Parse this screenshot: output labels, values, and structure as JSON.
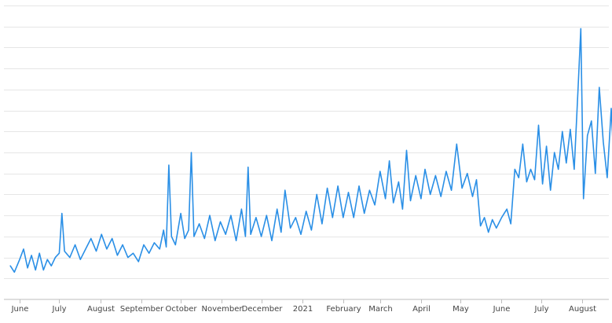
{
  "chart_data": {
    "type": "line",
    "title": "",
    "xlabel": "",
    "ylabel": "",
    "grid": true,
    "legend": "none",
    "color": "#2a8fe6",
    "ylim": [
      0,
      14
    ],
    "y_ticks": [
      0,
      1,
      2,
      3,
      4,
      5,
      6,
      7,
      8,
      9,
      10,
      11,
      12,
      13,
      14
    ],
    "y_tick_labels_shown": false,
    "x_tick_labels": [
      {
        "date": "2020-06-01",
        "label": "June"
      },
      {
        "date": "2020-07-01",
        "label": "July"
      },
      {
        "date": "2020-08-01",
        "label": "August"
      },
      {
        "date": "2020-09-01",
        "label": "September"
      },
      {
        "date": "2020-10-01",
        "label": "October"
      },
      {
        "date": "2020-11-01",
        "label": "November"
      },
      {
        "date": "2020-12-01",
        "label": "December"
      },
      {
        "date": "2021-01-01",
        "label": "2021"
      },
      {
        "date": "2021-02-01",
        "label": "February"
      },
      {
        "date": "2021-03-01",
        "label": "March"
      },
      {
        "date": "2021-04-01",
        "label": "April"
      },
      {
        "date": "2021-05-01",
        "label": "May"
      },
      {
        "date": "2021-06-01",
        "label": "June"
      },
      {
        "date": "2021-07-01",
        "label": "July"
      },
      {
        "date": "2021-08-01",
        "label": "August"
      }
    ],
    "series": [
      {
        "points": [
          [
            "2020-05-25",
            1.6
          ],
          [
            "2020-05-28",
            1.3
          ],
          [
            "2020-06-01",
            1.9
          ],
          [
            "2020-06-04",
            2.4
          ],
          [
            "2020-06-07",
            1.5
          ],
          [
            "2020-06-10",
            2.1
          ],
          [
            "2020-06-13",
            1.4
          ],
          [
            "2020-06-16",
            2.2
          ],
          [
            "2020-06-19",
            1.4
          ],
          [
            "2020-06-22",
            1.9
          ],
          [
            "2020-06-25",
            1.6
          ],
          [
            "2020-06-28",
            2.0
          ],
          [
            "2020-07-01",
            2.2
          ],
          [
            "2020-07-03",
            4.1
          ],
          [
            "2020-07-05",
            2.3
          ],
          [
            "2020-07-09",
            2.0
          ],
          [
            "2020-07-13",
            2.6
          ],
          [
            "2020-07-17",
            1.9
          ],
          [
            "2020-07-21",
            2.4
          ],
          [
            "2020-07-25",
            2.9
          ],
          [
            "2020-07-29",
            2.3
          ],
          [
            "2020-08-02",
            3.1
          ],
          [
            "2020-08-06",
            2.4
          ],
          [
            "2020-08-10",
            2.9
          ],
          [
            "2020-08-14",
            2.1
          ],
          [
            "2020-08-18",
            2.6
          ],
          [
            "2020-08-22",
            2.0
          ],
          [
            "2020-08-26",
            2.2
          ],
          [
            "2020-08-30",
            1.8
          ],
          [
            "2020-09-03",
            2.6
          ],
          [
            "2020-09-07",
            2.2
          ],
          [
            "2020-09-11",
            2.7
          ],
          [
            "2020-09-15",
            2.4
          ],
          [
            "2020-09-18",
            3.3
          ],
          [
            "2020-09-20",
            2.5
          ],
          [
            "2020-09-22",
            6.4
          ],
          [
            "2020-09-24",
            3.0
          ],
          [
            "2020-09-27",
            2.6
          ],
          [
            "2020-10-01",
            4.1
          ],
          [
            "2020-10-04",
            2.9
          ],
          [
            "2020-10-07",
            3.3
          ],
          [
            "2020-10-09",
            7.0
          ],
          [
            "2020-10-11",
            3.0
          ],
          [
            "2020-10-15",
            3.6
          ],
          [
            "2020-10-19",
            2.9
          ],
          [
            "2020-10-23",
            4.0
          ],
          [
            "2020-10-27",
            2.8
          ],
          [
            "2020-10-31",
            3.7
          ],
          [
            "2020-11-04",
            3.1
          ],
          [
            "2020-11-08",
            4.0
          ],
          [
            "2020-11-12",
            2.8
          ],
          [
            "2020-11-16",
            4.3
          ],
          [
            "2020-11-19",
            3.0
          ],
          [
            "2020-11-21",
            6.3
          ],
          [
            "2020-11-23",
            3.1
          ],
          [
            "2020-11-27",
            3.9
          ],
          [
            "2020-12-01",
            3.0
          ],
          [
            "2020-12-05",
            4.0
          ],
          [
            "2020-12-09",
            2.8
          ],
          [
            "2020-12-13",
            4.3
          ],
          [
            "2020-12-16",
            3.2
          ],
          [
            "2020-12-19",
            5.2
          ],
          [
            "2020-12-23",
            3.4
          ],
          [
            "2020-12-27",
            3.9
          ],
          [
            "2020-12-31",
            3.1
          ],
          [
            "2021-01-04",
            4.2
          ],
          [
            "2021-01-08",
            3.3
          ],
          [
            "2021-01-12",
            5.0
          ],
          [
            "2021-01-16",
            3.6
          ],
          [
            "2021-01-20",
            5.3
          ],
          [
            "2021-01-24",
            3.9
          ],
          [
            "2021-01-28",
            5.4
          ],
          [
            "2021-02-01",
            3.9
          ],
          [
            "2021-02-05",
            5.1
          ],
          [
            "2021-02-09",
            3.9
          ],
          [
            "2021-02-13",
            5.4
          ],
          [
            "2021-02-17",
            4.1
          ],
          [
            "2021-02-21",
            5.2
          ],
          [
            "2021-02-25",
            4.5
          ],
          [
            "2021-03-01",
            6.1
          ],
          [
            "2021-03-05",
            4.8
          ],
          [
            "2021-03-08",
            6.6
          ],
          [
            "2021-03-11",
            4.6
          ],
          [
            "2021-03-15",
            5.6
          ],
          [
            "2021-03-18",
            4.3
          ],
          [
            "2021-03-21",
            7.1
          ],
          [
            "2021-03-24",
            4.7
          ],
          [
            "2021-03-28",
            5.9
          ],
          [
            "2021-04-01",
            4.8
          ],
          [
            "2021-04-04",
            6.2
          ],
          [
            "2021-04-08",
            5.0
          ],
          [
            "2021-04-12",
            5.9
          ],
          [
            "2021-04-16",
            4.9
          ],
          [
            "2021-04-20",
            6.1
          ],
          [
            "2021-04-24",
            5.2
          ],
          [
            "2021-04-28",
            7.4
          ],
          [
            "2021-05-02",
            5.3
          ],
          [
            "2021-05-06",
            6.0
          ],
          [
            "2021-05-10",
            4.9
          ],
          [
            "2021-05-13",
            5.7
          ],
          [
            "2021-05-16",
            3.5
          ],
          [
            "2021-05-19",
            3.9
          ],
          [
            "2021-05-22",
            3.2
          ],
          [
            "2021-05-25",
            3.8
          ],
          [
            "2021-05-28",
            3.4
          ],
          [
            "2021-06-01",
            3.9
          ],
          [
            "2021-06-05",
            4.3
          ],
          [
            "2021-06-08",
            3.6
          ],
          [
            "2021-06-11",
            6.2
          ],
          [
            "2021-06-14",
            5.8
          ],
          [
            "2021-06-17",
            7.4
          ],
          [
            "2021-06-20",
            5.6
          ],
          [
            "2021-06-23",
            6.2
          ],
          [
            "2021-06-26",
            5.7
          ],
          [
            "2021-06-29",
            8.3
          ],
          [
            "2021-07-02",
            5.5
          ],
          [
            "2021-07-05",
            7.3
          ],
          [
            "2021-07-08",
            5.2
          ],
          [
            "2021-07-11",
            7.0
          ],
          [
            "2021-07-14",
            6.2
          ],
          [
            "2021-07-17",
            8.0
          ],
          [
            "2021-07-20",
            6.5
          ],
          [
            "2021-07-23",
            8.1
          ],
          [
            "2021-07-26",
            6.2
          ],
          [
            "2021-07-29",
            10.2
          ],
          [
            "2021-07-31",
            12.9
          ],
          [
            "2021-08-02",
            4.8
          ],
          [
            "2021-08-05",
            7.8
          ],
          [
            "2021-08-08",
            8.5
          ],
          [
            "2021-08-11",
            6.0
          ],
          [
            "2021-08-14",
            10.1
          ],
          [
            "2021-08-17",
            7.5
          ],
          [
            "2021-08-20",
            5.8
          ],
          [
            "2021-08-23",
            9.1
          ],
          [
            "2021-08-26",
            5.2
          ]
        ]
      }
    ]
  }
}
